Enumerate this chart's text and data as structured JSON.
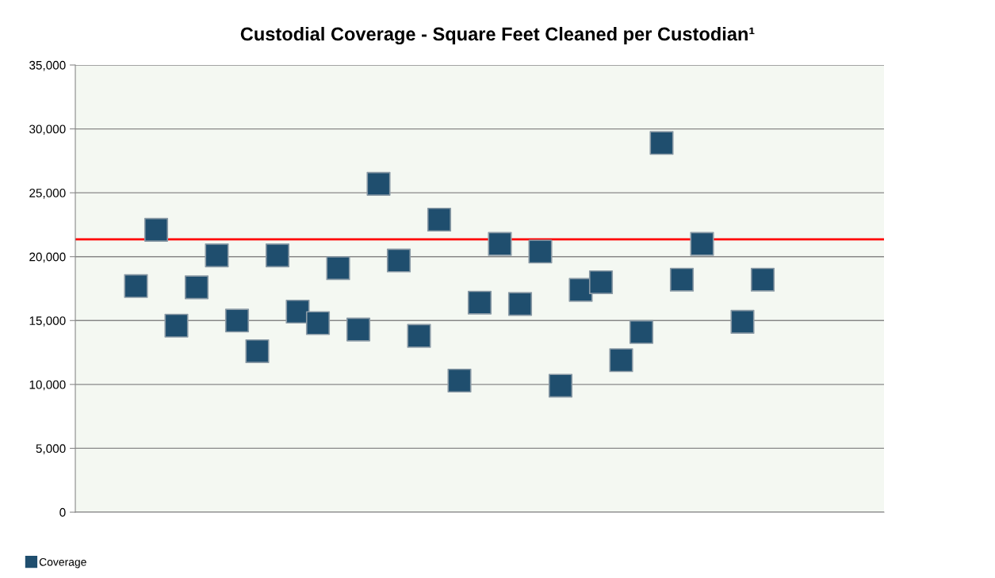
{
  "chart_data": {
    "type": "scatter",
    "title": "Custodial Coverage - Square Feet Cleaned per Custodian¹",
    "categories": [
      null,
      null,
      null,
      null,
      null,
      null,
      null,
      null,
      null,
      null,
      null,
      null,
      null,
      null,
      null,
      null,
      null,
      null,
      null,
      null,
      null,
      null,
      null,
      null,
      null,
      null,
      null,
      null,
      null,
      null,
      null,
      null,
      null,
      null,
      null,
      null,
      null,
      null,
      null,
      null,
      null
    ],
    "series": [
      {
        "name": "Coverage",
        "color": "#1f4e6e",
        "values": [
          null,
          null,
          null,
          17700,
          22100,
          14600,
          17600,
          20100,
          15000,
          12600,
          20100,
          15700,
          14800,
          19100,
          14300,
          25700,
          19700,
          13800,
          22900,
          10300,
          16400,
          21000,
          16300,
          20400,
          9900,
          17400,
          18000,
          11900,
          14100,
          28900,
          18200,
          21000,
          null,
          14900,
          18200,
          null,
          null,
          null,
          null,
          null,
          null
        ]
      }
    ],
    "ref_lines": [
      {
        "axis": "y",
        "value": 21350,
        "color": "#ff0000"
      }
    ],
    "ylim": [
      0,
      35000
    ],
    "yticks": [
      {
        "value": 0,
        "label": "0"
      },
      {
        "value": 5000,
        "label": "5,000"
      },
      {
        "value": 10000,
        "label": "10,000"
      },
      {
        "value": 15000,
        "label": "15,000"
      },
      {
        "value": 20000,
        "label": "20,000"
      },
      {
        "value": 25000,
        "label": "25,000"
      },
      {
        "value": 30000,
        "label": "30,000"
      },
      {
        "value": 35000,
        "label": "35,000"
      }
    ],
    "grid": "y",
    "legend": "bottom left",
    "marker": "square",
    "tick_labels": "y"
  }
}
